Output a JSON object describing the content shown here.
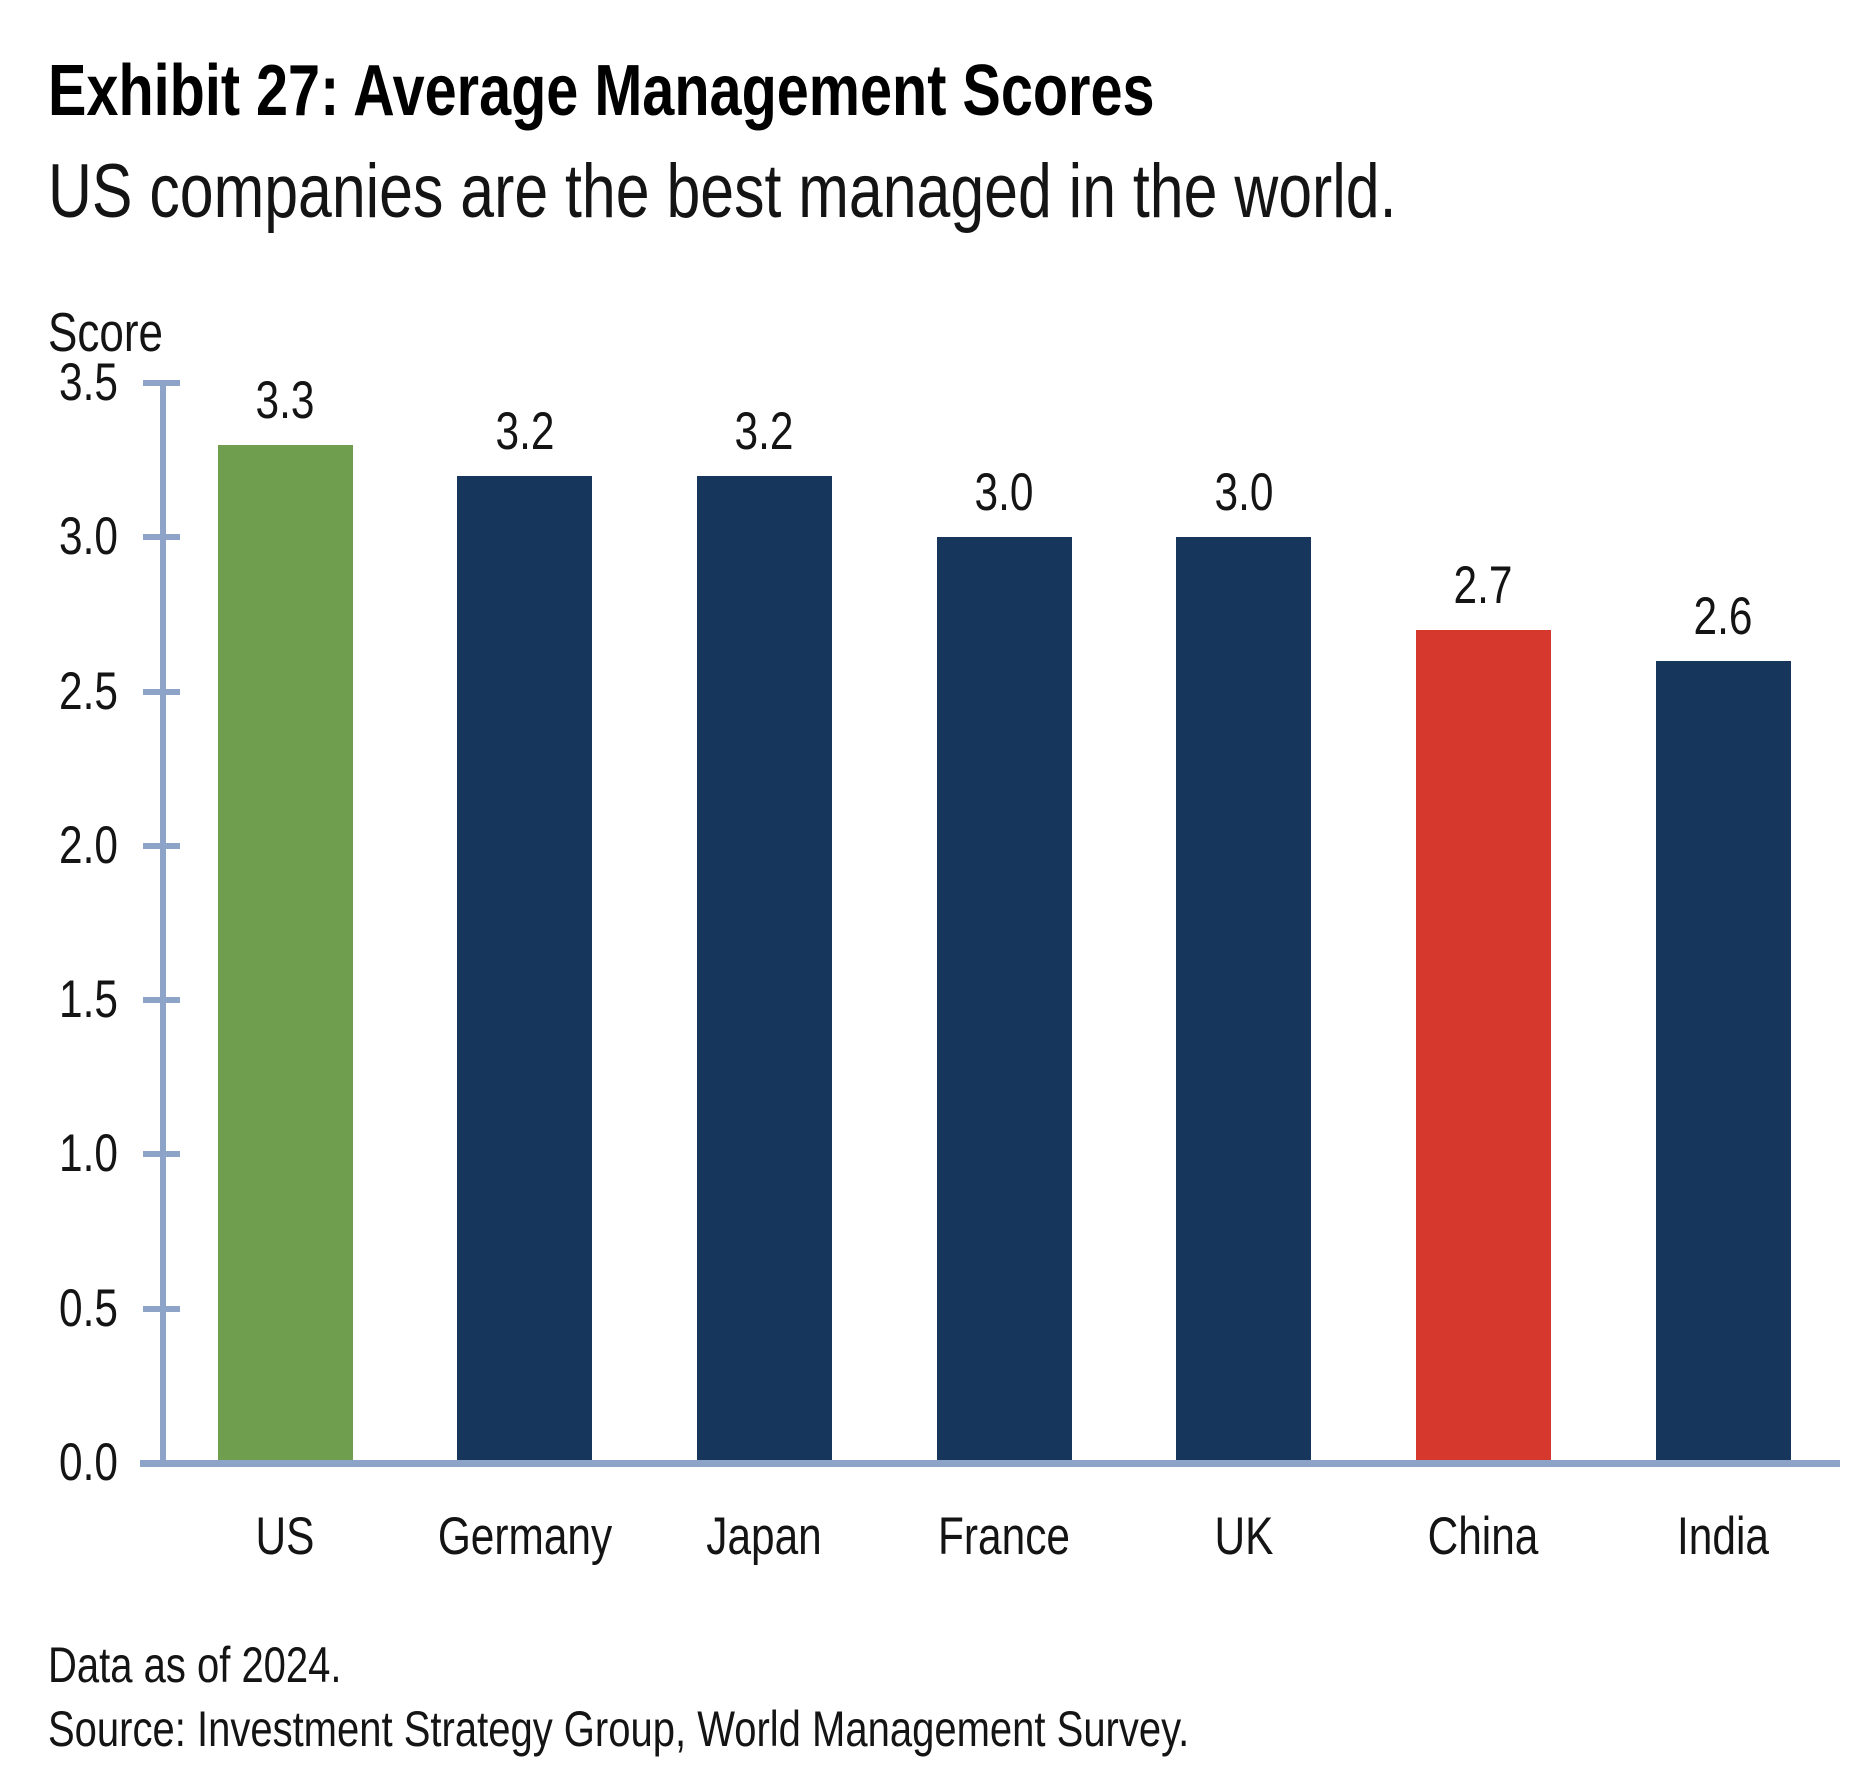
{
  "header": {
    "title": "Exhibit 27: Average Management Scores",
    "subtitle": "US companies are the best managed in the world."
  },
  "chart_data": {
    "type": "bar",
    "title": "Exhibit 27: Average Management Scores",
    "subtitle": "US companies are the best managed in the world.",
    "ylabel": "Score",
    "xlabel": "",
    "categories": [
      "US",
      "Germany",
      "Japan",
      "France",
      "UK",
      "China",
      "India"
    ],
    "values": [
      3.3,
      3.2,
      3.2,
      3.0,
      3.0,
      2.7,
      2.6
    ],
    "value_labels": [
      "3.3",
      "3.2",
      "3.2",
      "3.0",
      "3.0",
      "2.7",
      "2.6"
    ],
    "bar_colors": [
      "#6f9e4f",
      "#16365c",
      "#16365c",
      "#16365c",
      "#16365c",
      "#d7382e",
      "#16365c"
    ],
    "highlight_colors": {
      "positive": "#6f9e4f",
      "default": "#16365c",
      "negative": "#d7382e"
    },
    "ylim": [
      0.0,
      3.5
    ],
    "ytick_step": 0.5,
    "ytick_labels": [
      "0.0",
      "0.5",
      "1.0",
      "1.5",
      "2.0",
      "2.5",
      "3.0",
      "3.5"
    ],
    "grid": false,
    "legend": "none",
    "axis_color": "#8da3c8"
  },
  "footer": {
    "note": "Data as of 2024.",
    "source": "Source: Investment Strategy Group, World Management Survey."
  }
}
